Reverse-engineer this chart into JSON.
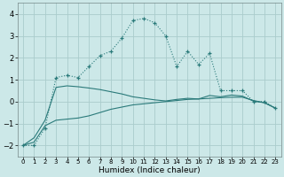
{
  "xlabel": "Humidex (Indice chaleur)",
  "bg_color": "#cce8e8",
  "grid_color": "#aacccc",
  "line_color": "#2a7a7a",
  "x_values": [
    0,
    1,
    2,
    3,
    4,
    5,
    6,
    7,
    8,
    9,
    10,
    11,
    12,
    13,
    14,
    15,
    16,
    17,
    18,
    19,
    20,
    21,
    22,
    23
  ],
  "main_line_y": [
    -2.0,
    -2.0,
    -1.2,
    1.1,
    1.2,
    1.1,
    1.6,
    2.1,
    2.3,
    2.9,
    3.7,
    3.8,
    3.6,
    3.0,
    1.6,
    2.3,
    1.7,
    2.2,
    0.5,
    0.5,
    0.5,
    0.0,
    0.0,
    -0.3
  ],
  "lower_line_y": [
    -2.0,
    -1.85,
    -1.1,
    -0.85,
    -0.8,
    -0.75,
    -0.65,
    -0.5,
    -0.35,
    -0.25,
    -0.15,
    -0.1,
    -0.05,
    0.0,
    0.05,
    0.1,
    0.12,
    0.15,
    0.18,
    0.2,
    0.2,
    0.05,
    -0.05,
    -0.3
  ],
  "upper_line_y": [
    -2.0,
    -1.65,
    -0.85,
    0.65,
    0.72,
    0.68,
    0.62,
    0.55,
    0.45,
    0.35,
    0.22,
    0.15,
    0.08,
    0.03,
    0.1,
    0.15,
    0.12,
    0.28,
    0.22,
    0.3,
    0.25,
    0.02,
    -0.05,
    -0.3
  ],
  "ylim": [
    -2.5,
    4.5
  ],
  "xlim": [
    -0.5,
    23.5
  ],
  "yticks": [
    -2,
    -1,
    0,
    1,
    2,
    3,
    4
  ],
  "xtick_fontsize": 5.0,
  "ytick_fontsize": 6.0,
  "xlabel_fontsize": 6.5
}
